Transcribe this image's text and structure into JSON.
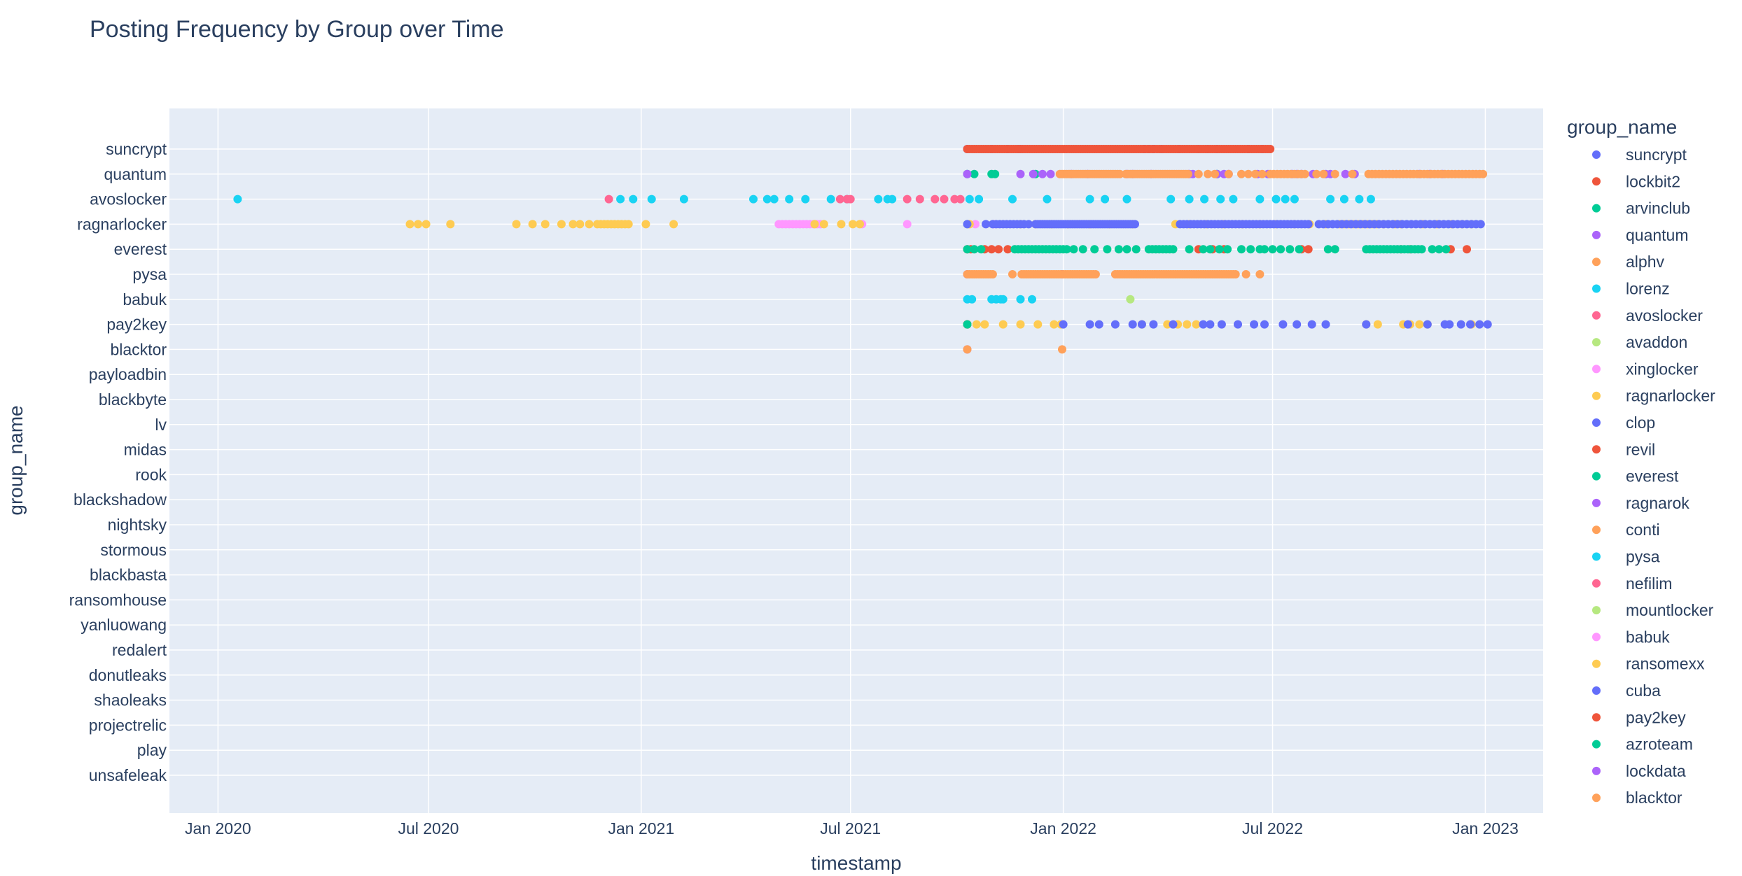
{
  "chart_data": {
    "type": "scatter",
    "title": "Posting Frequency by Group over Time",
    "xlabel": "timestamp",
    "ylabel": "group_name",
    "x_ticks": [
      "Jan 2020",
      "Jul 2020",
      "Jan 2021",
      "Jul 2021",
      "Jan 2022",
      "Jul 2022",
      "Jan 2023"
    ],
    "xlim": [
      "2019-11-20",
      "2023-02-20"
    ],
    "y_categories": [
      "suncrypt",
      "quantum",
      "avoslocker",
      "ragnarlocker",
      "everest",
      "pysa",
      "babuk",
      "pay2key",
      "blacktor",
      "payloadbin",
      "blackbyte",
      "lv",
      "midas",
      "rook",
      "blackshadow",
      "nightsky",
      "stormous",
      "blackbasta",
      "ransomhouse",
      "yanluowang",
      "redalert",
      "donutleaks",
      "shaoleaks",
      "projectrelic",
      "play",
      "unsafeleak"
    ],
    "legend_title": "group_name",
    "legend_placement": "right",
    "grid": true,
    "series": [
      {
        "name": "suncrypt",
        "color": "#636efa",
        "points": [
          [
            "suncrypt",
            [
              "2021-10-10",
              "2021-10-31",
              "2021-11-14",
              "2021-11-23",
              "2021-11-25",
              "2022-03-12",
              "2022-03-16",
              "2022-03-20",
              "2022-03-27",
              "2022-04-11",
              "2022-04-28",
              "2022-05-06",
              "2022-05-14",
              "2022-06-10",
              "2022-06-22"
            ]
          ]
        ]
      },
      {
        "name": "lockbit2",
        "color": "#EF553B",
        "points": [
          [
            "suncrypt",
            [
              {
                "from": "2021-10-10",
                "to": "2022-06-30",
                "step": 2
              }
            ]
          ]
        ]
      },
      {
        "name": "arvinclub",
        "color": "#00cc96",
        "points": [
          [
            "quantum",
            [
              "2021-10-10",
              "2021-10-16",
              "2021-10-31",
              "2021-11-03",
              "2021-12-08",
              "2022-05-14"
            ]
          ]
        ]
      },
      {
        "name": "quantum",
        "color": "#ab63fa",
        "points": [
          [
            "quantum",
            [
              "2021-10-10",
              "2021-11-25",
              "2021-12-06",
              "2021-12-14",
              "2021-12-21",
              "2022-01-08",
              "2022-01-22",
              "2022-02-25",
              "2022-03-02",
              "2022-03-18",
              "2022-04-20",
              "2022-04-23",
              "2022-05-14",
              "2022-05-20",
              "2022-05-24",
              "2022-06-18",
              "2022-06-27",
              "2022-07-18",
              "2022-07-22",
              "2022-07-26",
              "2022-08-05",
              "2022-08-16",
              "2022-08-20",
              "2022-09-02",
              "2022-09-10",
              "2022-11-05",
              "2022-11-14",
              "2022-11-25"
            ]
          ]
        ]
      },
      {
        "name": "alphv",
        "color": "#FFA15A",
        "points": [
          [
            "quantum",
            [
              {
                "from": "2021-12-29",
                "to": "2022-02-20",
                "step": 2
              },
              {
                "from": "2022-02-24",
                "to": "2022-04-20",
                "step": 2
              },
              "2022-04-28",
              "2022-05-06",
              "2022-05-12",
              "2022-05-24",
              "2022-06-04",
              "2022-06-10",
              "2022-06-16",
              "2022-06-22",
              {
                "from": "2022-06-29",
                "to": "2022-07-31",
                "step": 3
              },
              "2022-08-08",
              "2022-08-14",
              "2022-08-24",
              "2022-09-08",
              {
                "from": "2022-09-22",
                "to": "2022-12-31",
                "step": 3
              }
            ]
          ]
        ]
      },
      {
        "name": "lorenz",
        "color": "#19d3f3",
        "points": [
          [
            "avoslocker",
            [
              "2020-01-18",
              "2020-12-14",
              "2020-12-25",
              "2021-01-10",
              "2021-02-07",
              "2021-04-08",
              "2021-04-20",
              "2021-04-26",
              "2021-05-09",
              "2021-05-23",
              "2021-06-14",
              "2021-06-28",
              "2021-07-25",
              "2021-08-02",
              "2021-08-06",
              "2021-10-12",
              "2021-10-20",
              "2021-11-18",
              "2021-12-18",
              "2022-01-24",
              "2022-02-06",
              "2022-02-25",
              "2022-04-04",
              "2022-04-20",
              "2022-05-03",
              "2022-05-17",
              "2022-05-28",
              "2022-06-20",
              "2022-07-04",
              "2022-07-12",
              "2022-07-20",
              "2022-08-20",
              "2022-09-01",
              "2022-09-14",
              "2022-09-24"
            ]
          ]
        ]
      },
      {
        "name": "avoslocker",
        "color": "#FF6692",
        "points": [
          [
            "avoslocker",
            [
              "2020-12-04",
              "2021-06-22",
              "2021-06-28",
              "2021-07-01",
              "2021-08-19",
              "2021-08-30",
              "2021-09-12",
              "2021-09-20",
              "2021-09-29",
              "2021-10-04"
            ]
          ]
        ]
      },
      {
        "name": "avaddon",
        "color": "#B6E880",
        "points": [
          [
            "ragnarlocker",
            [
              "2021-10-10"
            ]
          ]
        ]
      },
      {
        "name": "xinglocker",
        "color": "#FF97FF",
        "points": [
          [
            "ragnarlocker",
            [
              {
                "from": "2021-04-30",
                "to": "2021-06-06",
                "step": 3
              },
              "2021-07-11",
              "2021-08-19",
              "2021-10-17",
              "2021-11-02"
            ]
          ]
        ]
      },
      {
        "name": "ragnarlocker",
        "color": "#FECB52",
        "points": [
          [
            "ragnarlocker",
            [
              "2020-06-15",
              "2020-06-22",
              "2020-06-29",
              "2020-07-20",
              "2020-09-15",
              "2020-09-29",
              "2020-10-10",
              "2020-10-24",
              "2020-11-03",
              "2020-11-09",
              "2020-11-17",
              {
                "from": "2020-11-24",
                "to": "2020-12-21",
                "step": 3
              },
              "2021-01-05",
              "2021-01-29",
              "2021-05-31",
              "2021-06-08",
              "2021-06-23",
              "2021-07-03",
              "2021-07-09",
              "2021-10-12",
              "2021-11-25",
              "2021-12-08",
              "2021-12-22",
              "2022-01-05",
              "2022-01-24",
              "2022-02-10",
              "2022-03-02",
              "2022-04-08",
              "2022-04-20",
              "2022-05-05",
              "2022-05-20",
              "2022-06-05",
              "2022-06-20",
              "2022-07-04",
              "2022-07-20",
              "2022-08-02",
              "2022-08-16",
              {
                "from": "2022-08-28",
                "to": "2022-09-30",
                "step": 4
              },
              "2022-10-05",
              "2022-10-15",
              "2022-10-20",
              "2022-11-08",
              "2022-11-20",
              "2022-12-03",
              "2022-12-12",
              "2022-12-20"
            ]
          ]
        ]
      },
      {
        "name": "clop",
        "color": "#636efa",
        "points": [
          [
            "ragnarlocker",
            [
              "2021-10-10",
              "2021-10-26",
              {
                "from": "2021-11-01",
                "to": "2021-11-28",
                "step": 3
              },
              "2021-12-02",
              {
                "from": "2021-12-08",
                "to": "2022-03-05",
                "step": 2
              },
              {
                "from": "2022-04-12",
                "to": "2022-08-03",
                "step": 3
              },
              {
                "from": "2022-08-10",
                "to": "2022-12-31",
                "step": 4
              }
            ]
          ]
        ]
      },
      {
        "name": "revil",
        "color": "#EF553B",
        "points": [
          [
            "everest",
            [
              "2021-10-10",
              "2021-10-13",
              "2021-10-25",
              "2021-10-31",
              "2021-11-06",
              "2021-11-14",
              "2022-04-28",
              "2022-05-10",
              "2022-05-20",
              "2022-07-26",
              "2022-08-01",
              "2022-10-20",
              "2022-10-28",
              "2022-12-02",
              "2022-12-16"
            ]
          ]
        ]
      },
      {
        "name": "everest",
        "color": "#00cc96",
        "points": [
          [
            "everest",
            [
              "2021-10-10",
              "2021-10-16",
              "2021-10-22",
              {
                "from": "2021-11-20",
                "to": "2022-01-04",
                "step": 3
              },
              "2022-01-10",
              "2022-01-18",
              "2022-01-28",
              "2022-02-08",
              "2022-02-18",
              "2022-02-25",
              "2022-03-05",
              {
                "from": "2022-03-16",
                "to": "2022-04-08",
                "step": 3
              },
              "2022-04-20",
              "2022-05-02",
              "2022-05-08",
              "2022-05-16",
              "2022-05-23",
              "2022-06-04",
              "2022-06-12",
              "2022-06-20",
              "2022-06-24",
              "2022-07-01",
              "2022-07-08",
              "2022-07-16",
              "2022-07-24",
              "2022-08-18",
              "2022-08-24",
              {
                "from": "2022-09-20",
                "to": "2022-11-08",
                "step": 3
              },
              "2022-11-16",
              "2022-11-22",
              "2022-11-28"
            ]
          ]
        ]
      },
      {
        "name": "ragnarok",
        "color": "#ab63fa",
        "points": [
          [
            "pysa",
            [
              "2021-10-10",
              "2021-12-31"
            ]
          ]
        ]
      },
      {
        "name": "conti",
        "color": "#FFA15A",
        "points": [
          [
            "pysa",
            [
              {
                "from": "2021-10-10",
                "to": "2021-11-02",
                "step": 2
              },
              "2021-11-18",
              {
                "from": "2021-11-26",
                "to": "2022-01-30",
                "step": 2
              },
              {
                "from": "2022-02-15",
                "to": "2022-05-31",
                "step": 2
              },
              "2022-06-08",
              "2022-06-20"
            ]
          ]
        ]
      },
      {
        "name": "pysa",
        "color": "#19d3f3",
        "points": [
          [
            "babuk",
            [
              "2021-10-10",
              "2021-10-14",
              "2021-10-31",
              "2021-11-04",
              "2021-11-08",
              "2021-11-10",
              "2021-11-25",
              "2021-12-05"
            ]
          ]
        ]
      },
      {
        "name": "nefilim",
        "color": "#FF6692",
        "points": [
          [
            "pay2key",
            [
              "2021-10-10"
            ]
          ]
        ]
      },
      {
        "name": "mountlocker",
        "color": "#B6E880",
        "points": [
          [
            "pay2key",
            [
              "2021-10-10"
            ]
          ],
          [
            "babuk",
            [
              "2022-02-28"
            ]
          ]
        ]
      },
      {
        "name": "babuk",
        "color": "#FF97FF",
        "points": [
          [
            "pay2key",
            [
              "2021-10-10"
            ]
          ]
        ]
      },
      {
        "name": "ransomexx",
        "color": "#FECB52",
        "points": [
          [
            "pay2key",
            [
              "2021-10-10",
              "2021-10-18",
              "2021-10-25",
              "2021-11-10",
              "2021-11-25",
              "2021-12-10",
              "2021-12-24",
              "2021-12-30",
              "2022-03-10",
              "2022-04-01",
              "2022-04-10",
              "2022-04-18",
              "2022-04-26",
              "2022-09-20",
              "2022-09-30",
              "2022-10-22",
              "2022-10-28",
              "2022-11-05",
              "2022-11-12",
              "2022-12-20"
            ]
          ]
        ]
      },
      {
        "name": "cuba",
        "color": "#636efa",
        "points": [
          [
            "pay2key",
            [
              "2022-01-01",
              "2022-01-24",
              "2022-02-01",
              "2022-02-15",
              "2022-03-02",
              "2022-03-10",
              "2022-03-20",
              "2022-04-06",
              "2022-05-02",
              "2022-05-08",
              "2022-05-18",
              "2022-06-01",
              "2022-06-15",
              "2022-06-24",
              "2022-07-10",
              "2022-07-22",
              "2022-08-04",
              "2022-08-16",
              "2022-09-20",
              "2022-10-26",
              "2022-11-12",
              "2022-11-27",
              "2022-12-01",
              "2022-12-11",
              "2022-12-19",
              "2022-12-27",
              "2023-01-03"
            ]
          ]
        ]
      },
      {
        "name": "pay2key",
        "color": "#EF553B",
        "points": [
          [
            "pay2key",
            [
              "2021-10-10"
            ]
          ]
        ]
      },
      {
        "name": "azroteam",
        "color": "#00cc96",
        "points": [
          [
            "pay2key",
            [
              "2021-10-10"
            ]
          ]
        ]
      },
      {
        "name": "lockdata",
        "color": "#ab63fa",
        "points": [
          [
            "blacktor",
            [
              "2021-10-10"
            ]
          ]
        ]
      },
      {
        "name": "blacktor",
        "color": "#FFA15A",
        "points": [
          [
            "blacktor",
            [
              "2021-10-10",
              "2021-12-31"
            ]
          ]
        ]
      }
    ]
  }
}
